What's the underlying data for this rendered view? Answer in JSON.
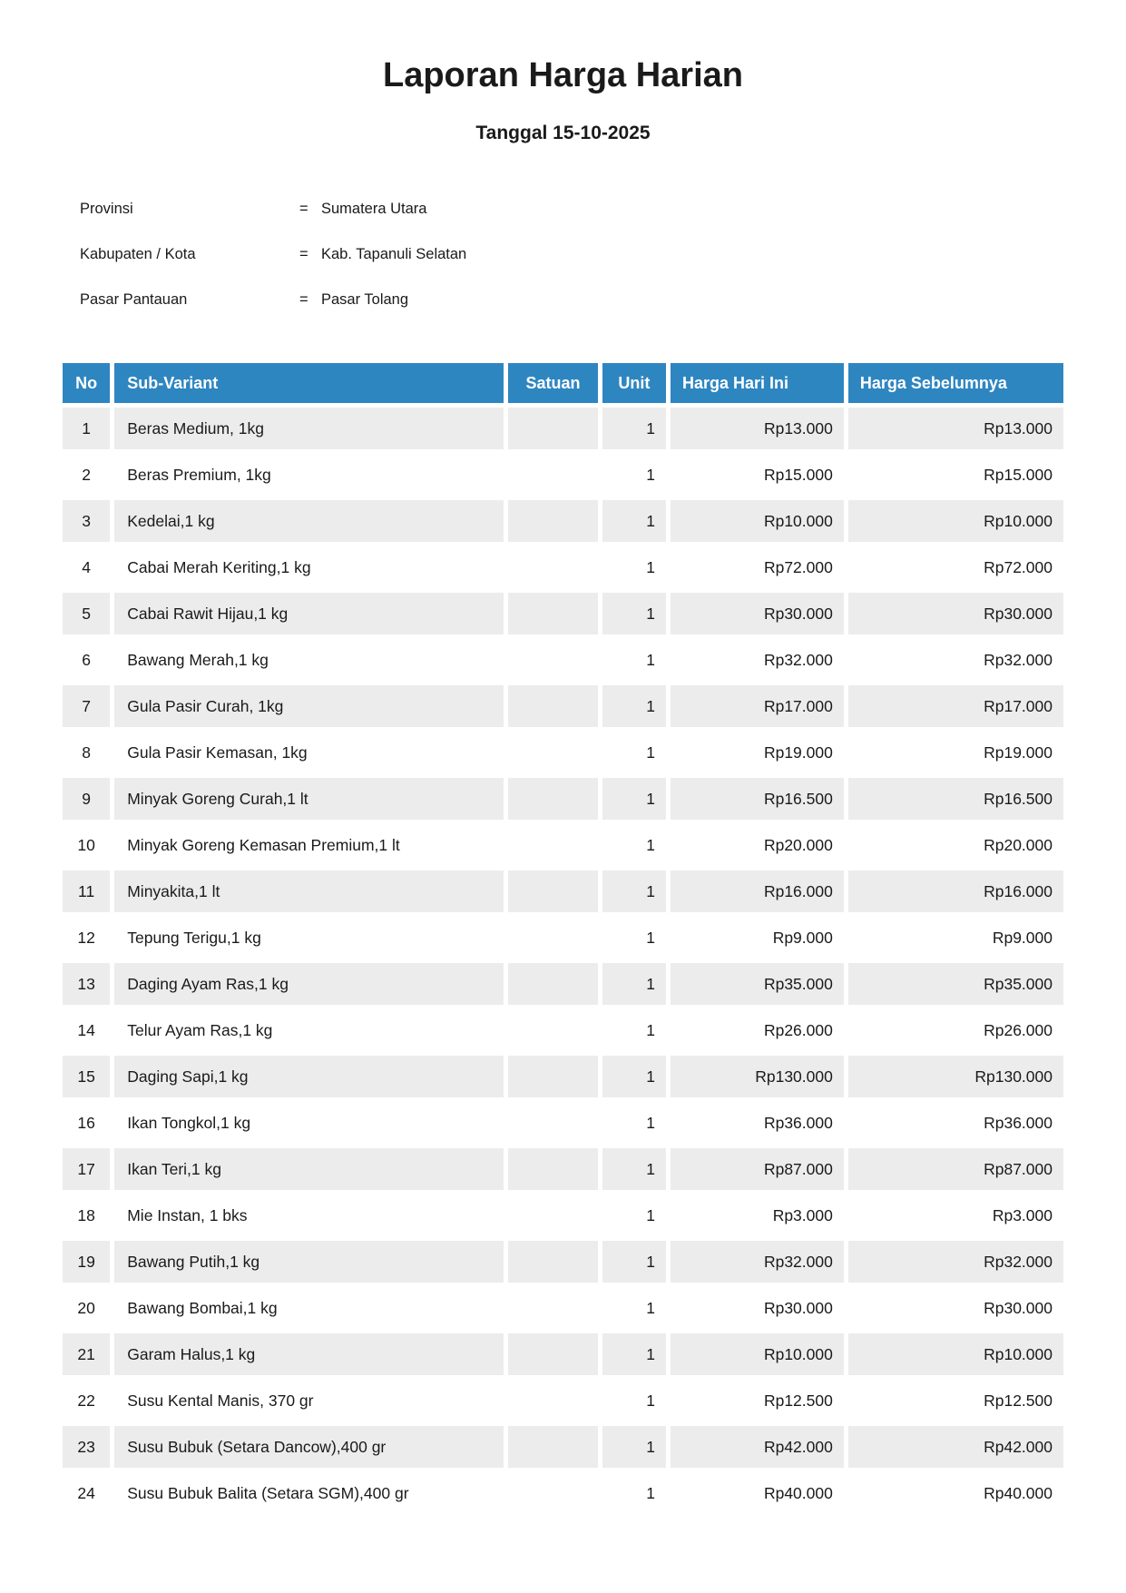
{
  "title": "Laporan Harga Harian",
  "subtitle": "Tanggal 15-10-2025",
  "info": {
    "rows": [
      {
        "label": "Provinsi",
        "separator": "=",
        "value": "Sumatera Utara"
      },
      {
        "label": "Kabupaten / Kota",
        "separator": "=",
        "value": "Kab. Tapanuli Selatan"
      },
      {
        "label": "Pasar Pantauan",
        "separator": "=",
        "value": "Pasar Tolang"
      }
    ]
  },
  "table": {
    "columns": [
      "No",
      "Sub-Variant",
      "Satuan",
      "Unit",
      "Harga Hari Ini",
      "Harga Sebelumnya"
    ],
    "rows": [
      {
        "no": "1",
        "sub_variant": "Beras Medium, 1kg",
        "satuan": "",
        "unit": "1",
        "harga_hari_ini": "Rp13.000",
        "harga_sebelumnya": "Rp13.000"
      },
      {
        "no": "2",
        "sub_variant": "Beras Premium, 1kg",
        "satuan": "",
        "unit": "1",
        "harga_hari_ini": "Rp15.000",
        "harga_sebelumnya": "Rp15.000"
      },
      {
        "no": "3",
        "sub_variant": "Kedelai,1 kg",
        "satuan": "",
        "unit": "1",
        "harga_hari_ini": "Rp10.000",
        "harga_sebelumnya": "Rp10.000"
      },
      {
        "no": "4",
        "sub_variant": "Cabai Merah Keriting,1 kg",
        "satuan": "",
        "unit": "1",
        "harga_hari_ini": "Rp72.000",
        "harga_sebelumnya": "Rp72.000"
      },
      {
        "no": "5",
        "sub_variant": "Cabai Rawit Hijau,1 kg",
        "satuan": "",
        "unit": "1",
        "harga_hari_ini": "Rp30.000",
        "harga_sebelumnya": "Rp30.000"
      },
      {
        "no": "6",
        "sub_variant": "Bawang Merah,1 kg",
        "satuan": "",
        "unit": "1",
        "harga_hari_ini": "Rp32.000",
        "harga_sebelumnya": "Rp32.000"
      },
      {
        "no": "7",
        "sub_variant": "Gula Pasir Curah, 1kg",
        "satuan": "",
        "unit": "1",
        "harga_hari_ini": "Rp17.000",
        "harga_sebelumnya": "Rp17.000"
      },
      {
        "no": "8",
        "sub_variant": "Gula Pasir Kemasan, 1kg",
        "satuan": "",
        "unit": "1",
        "harga_hari_ini": "Rp19.000",
        "harga_sebelumnya": "Rp19.000"
      },
      {
        "no": "9",
        "sub_variant": "Minyak Goreng Curah,1 lt",
        "satuan": "",
        "unit": "1",
        "harga_hari_ini": "Rp16.500",
        "harga_sebelumnya": "Rp16.500"
      },
      {
        "no": "10",
        "sub_variant": "Minyak Goreng Kemasan Premium,1 lt",
        "satuan": "",
        "unit": "1",
        "harga_hari_ini": "Rp20.000",
        "harga_sebelumnya": "Rp20.000"
      },
      {
        "no": "11",
        "sub_variant": "Minyakita,1 lt",
        "satuan": "",
        "unit": "1",
        "harga_hari_ini": "Rp16.000",
        "harga_sebelumnya": "Rp16.000"
      },
      {
        "no": "12",
        "sub_variant": "Tepung Terigu,1 kg",
        "satuan": "",
        "unit": "1",
        "harga_hari_ini": "Rp9.000",
        "harga_sebelumnya": "Rp9.000"
      },
      {
        "no": "13",
        "sub_variant": "Daging Ayam Ras,1 kg",
        "satuan": "",
        "unit": "1",
        "harga_hari_ini": "Rp35.000",
        "harga_sebelumnya": "Rp35.000"
      },
      {
        "no": "14",
        "sub_variant": "Telur Ayam Ras,1 kg",
        "satuan": "",
        "unit": "1",
        "harga_hari_ini": "Rp26.000",
        "harga_sebelumnya": "Rp26.000"
      },
      {
        "no": "15",
        "sub_variant": "Daging Sapi,1 kg",
        "satuan": "",
        "unit": "1",
        "harga_hari_ini": "Rp130.000",
        "harga_sebelumnya": "Rp130.000"
      },
      {
        "no": "16",
        "sub_variant": "Ikan Tongkol,1 kg",
        "satuan": "",
        "unit": "1",
        "harga_hari_ini": "Rp36.000",
        "harga_sebelumnya": "Rp36.000"
      },
      {
        "no": "17",
        "sub_variant": "Ikan Teri,1 kg",
        "satuan": "",
        "unit": "1",
        "harga_hari_ini": "Rp87.000",
        "harga_sebelumnya": "Rp87.000"
      },
      {
        "no": "18",
        "sub_variant": "Mie Instan, 1 bks",
        "satuan": "",
        "unit": "1",
        "harga_hari_ini": "Rp3.000",
        "harga_sebelumnya": "Rp3.000"
      },
      {
        "no": "19",
        "sub_variant": "Bawang Putih,1 kg",
        "satuan": "",
        "unit": "1",
        "harga_hari_ini": "Rp32.000",
        "harga_sebelumnya": "Rp32.000"
      },
      {
        "no": "20",
        "sub_variant": "Bawang Bombai,1 kg",
        "satuan": "",
        "unit": "1",
        "harga_hari_ini": "Rp30.000",
        "harga_sebelumnya": "Rp30.000"
      },
      {
        "no": "21",
        "sub_variant": "Garam Halus,1 kg",
        "satuan": "",
        "unit": "1",
        "harga_hari_ini": "Rp10.000",
        "harga_sebelumnya": "Rp10.000"
      },
      {
        "no": "22",
        "sub_variant": "Susu Kental Manis, 370 gr",
        "satuan": "",
        "unit": "1",
        "harga_hari_ini": "Rp12.500",
        "harga_sebelumnya": "Rp12.500"
      },
      {
        "no": "23",
        "sub_variant": "Susu Bubuk (Setara Dancow),400 gr",
        "satuan": "",
        "unit": "1",
        "harga_hari_ini": "Rp42.000",
        "harga_sebelumnya": "Rp42.000"
      },
      {
        "no": "24",
        "sub_variant": "Susu Bubuk Balita (Setara SGM),400 gr",
        "satuan": "",
        "unit": "1",
        "harga_hari_ini": "Rp40.000",
        "harga_sebelumnya": "Rp40.000"
      }
    ]
  },
  "colors": {
    "header_bg": "#2E86C1",
    "header_text": "#FFFFFF",
    "stripe_bg": "#ECECEC",
    "body_text": "#1A1A1A"
  }
}
